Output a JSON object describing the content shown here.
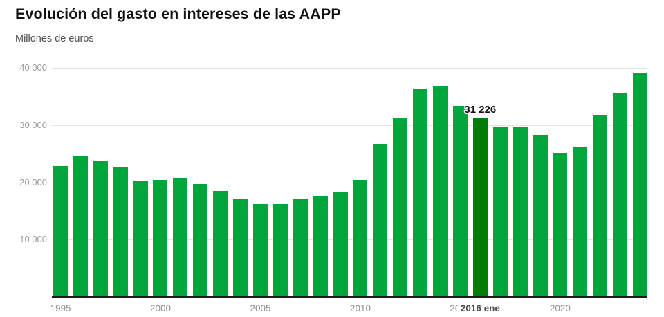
{
  "header": {
    "title": "Evolución del gasto en intereses de las AAPP",
    "subtitle": "Millones de euros"
  },
  "chart_data": {
    "type": "bar",
    "title": "Evolución del gasto en intereses de las AAPP",
    "ylabel": "Millones de euros",
    "xlabel": "",
    "grid": true,
    "legend_position": "none",
    "ylim": [
      0,
      40000
    ],
    "categories": [
      1995,
      1996,
      1997,
      1998,
      1999,
      2000,
      2001,
      2002,
      2003,
      2004,
      2005,
      2006,
      2007,
      2008,
      2009,
      2010,
      2011,
      2012,
      2013,
      2014,
      2015,
      2016,
      2017,
      2018,
      2019,
      2020,
      2021,
      2022,
      2023,
      2024
    ],
    "values": [
      22900,
      24700,
      23700,
      22700,
      20300,
      20400,
      20800,
      19700,
      18500,
      17000,
      16200,
      16200,
      17000,
      17600,
      18400,
      20400,
      26700,
      31200,
      36400,
      36900,
      33400,
      31226,
      29600,
      29600,
      28300,
      25200,
      26100,
      31800,
      35700,
      39100
    ],
    "highlight": {
      "year": 2016,
      "value": 31226,
      "value_label": "31 226",
      "x_label": "2016 ene"
    },
    "y_ticks": [
      {
        "value": 40000,
        "label": "40 000"
      },
      {
        "value": 30000,
        "label": "30 000"
      },
      {
        "value": 20000,
        "label": "20 000"
      },
      {
        "value": 10000,
        "label": "10 000"
      }
    ],
    "x_ticks": [
      {
        "year": 1995,
        "label": "1995"
      },
      {
        "year": 2000,
        "label": "2000"
      },
      {
        "year": 2005,
        "label": "2005"
      },
      {
        "year": 2010,
        "label": "2010"
      },
      {
        "year": 2015,
        "label": "2015"
      },
      {
        "year": 2020,
        "label": "2020"
      }
    ],
    "colors": {
      "bar": "#00a63c",
      "highlight_bar": "#027c02",
      "gridline": "#e4e4e4",
      "axis_label": "#9a9a9a",
      "baseline": "#1d1d1d"
    }
  }
}
